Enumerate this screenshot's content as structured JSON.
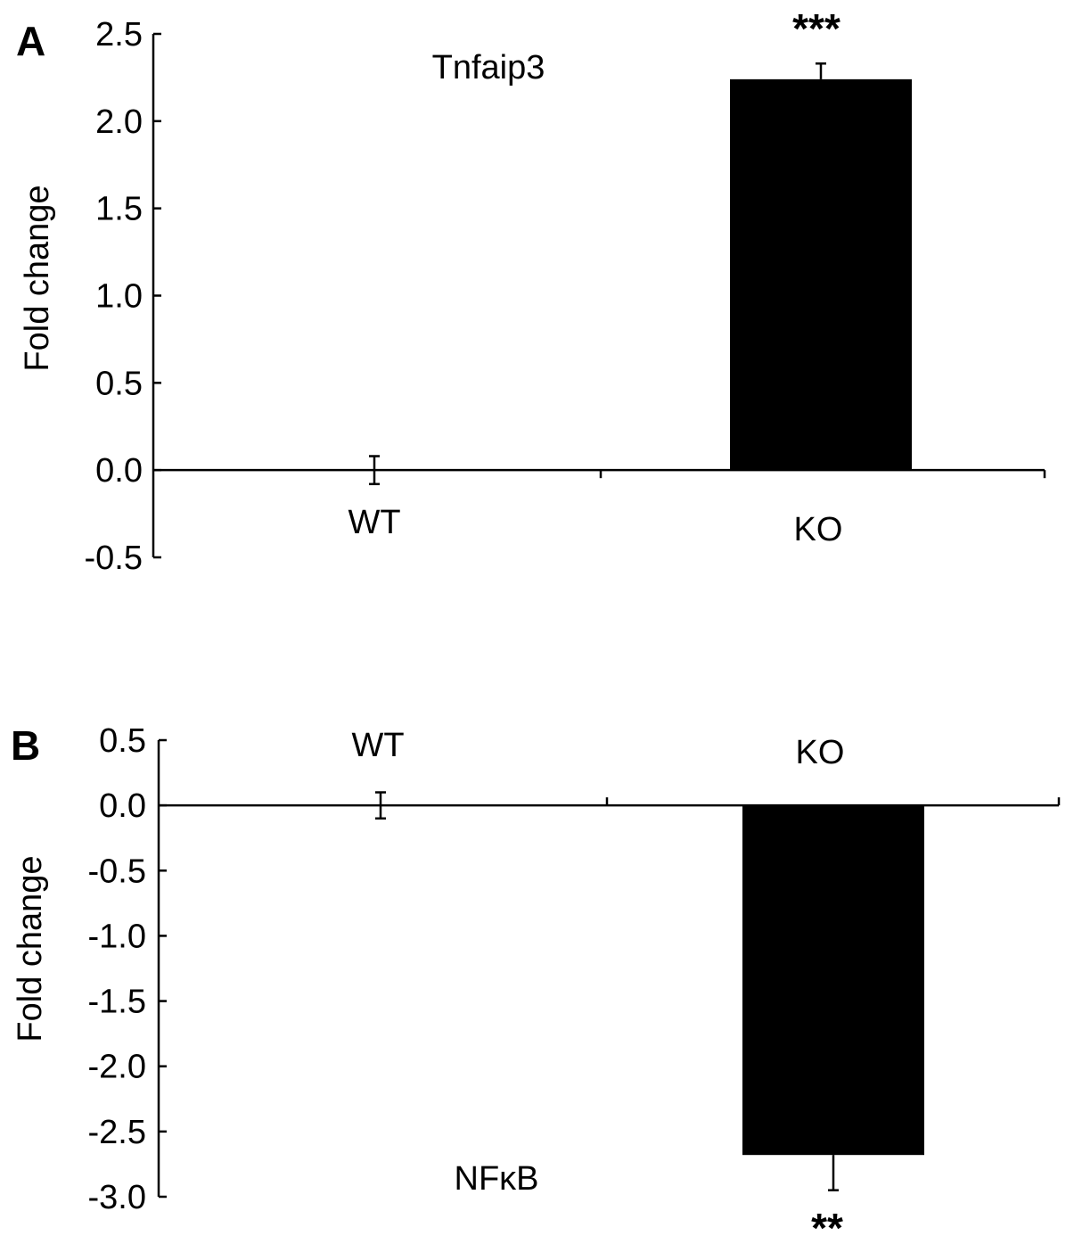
{
  "chart_data": [
    {
      "type": "bar",
      "panel_label": "A",
      "title": "Tnfaip3",
      "ylabel": "Fold change",
      "ylim": [
        -0.5,
        2.5
      ],
      "yticks": [
        "2.5",
        "2.0",
        "1.5",
        "1.0",
        "0.5",
        "0.0",
        "-0.5"
      ],
      "categories": [
        "WT",
        "KO"
      ],
      "values": [
        0.0,
        2.24
      ],
      "errors": [
        0.08,
        0.09
      ],
      "significance": [
        "",
        "***"
      ]
    },
    {
      "type": "bar",
      "panel_label": "B",
      "title": "NFκB",
      "ylabel": "Fold change",
      "ylim": [
        -3.0,
        0.5
      ],
      "yticks": [
        "0.5",
        "0.0",
        "-0.5",
        "-1.0",
        "-1.5",
        "-2.0",
        "-2.5",
        "-3.0"
      ],
      "categories": [
        "WT",
        "KO"
      ],
      "values": [
        0.0,
        -2.68
      ],
      "errors": [
        0.1,
        0.27
      ],
      "significance": [
        "",
        "**"
      ]
    }
  ]
}
